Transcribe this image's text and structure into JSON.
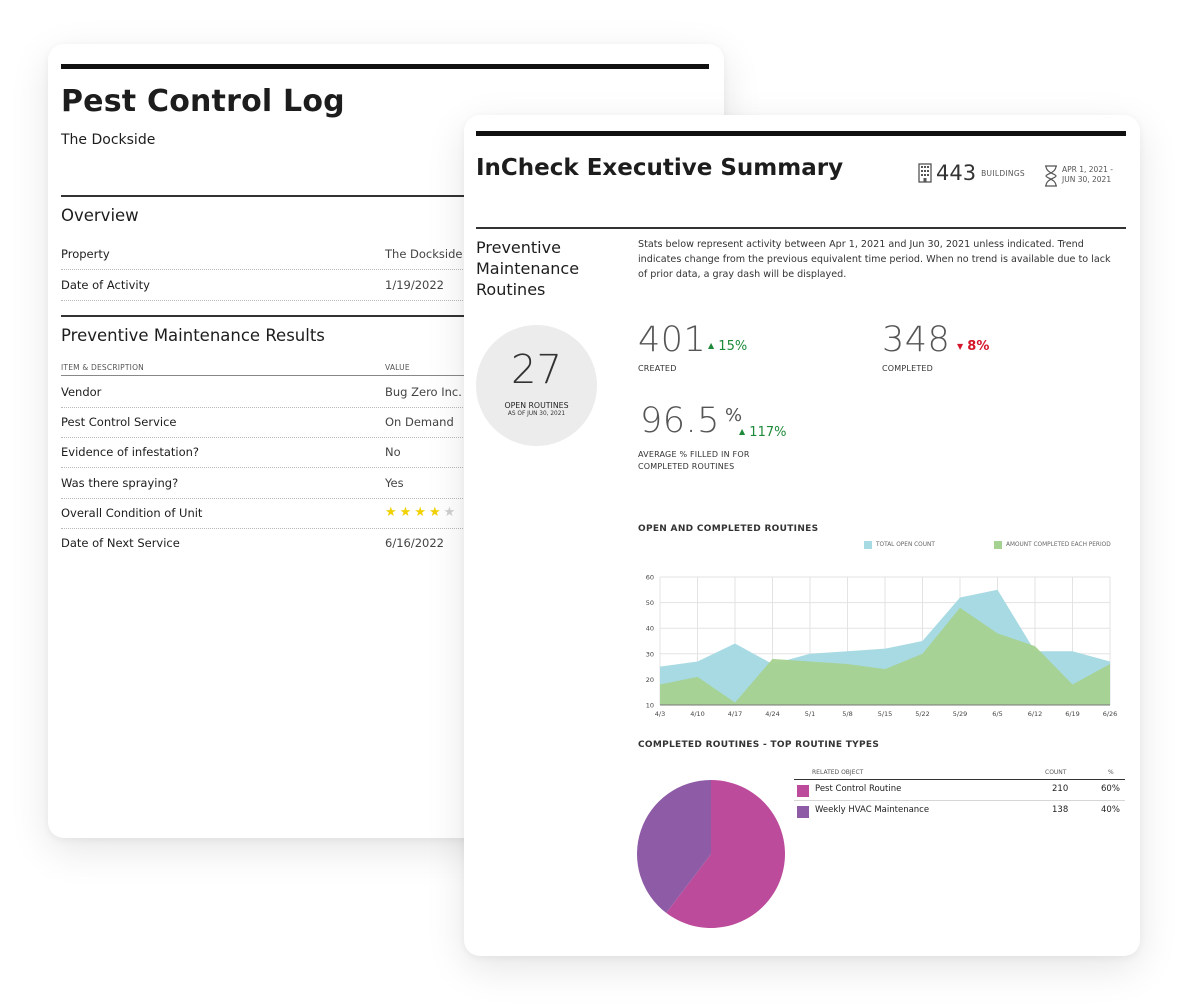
{
  "pest_log": {
    "title": "Pest Control Log",
    "subtitle": "The Dockside",
    "overview": {
      "heading": "Overview",
      "rows": [
        {
          "label": "Property",
          "value": "The Dockside"
        },
        {
          "label": "Date of Activity",
          "value": "1/19/2022"
        }
      ]
    },
    "results": {
      "heading": "Preventive Maintenance Results",
      "col_item": "ITEM & DESCRIPTION",
      "col_value": "VALUE",
      "rows": [
        {
          "label": "Vendor",
          "value": "Bug Zero Inc."
        },
        {
          "label": "Pest Control Service",
          "value": "On Demand"
        },
        {
          "label": "Evidence of infestation?",
          "value": "No"
        },
        {
          "label": "Was there spraying?",
          "value": "Yes"
        },
        {
          "label": "Overall Condition of Unit",
          "rating": 4,
          "rating_max": 5
        },
        {
          "label": "Date of Next Service",
          "value": "6/16/2022"
        }
      ]
    }
  },
  "summary": {
    "title": "InCheck Executive Summary",
    "buildings_count": "443",
    "buildings_label": "BUILDINGS",
    "date_range": "APR 1, 2021 - JUN 30, 2021",
    "section_title": "Preventive Maintenance Routines",
    "intro": "Stats below represent activity between Apr 1, 2021 and Jun 30, 2021 unless indicated. Trend indicates change from the previous equivalent time period. When no trend is available due to lack of prior data, a gray dash will be displayed.",
    "open_routines": {
      "value": "27",
      "label": "OPEN ROUTINES",
      "as_of": "AS OF JUN 30, 2021"
    },
    "stats": {
      "created": {
        "value": "401",
        "trend": "15%",
        "direction": "up",
        "label": "CREATED"
      },
      "completed": {
        "value": "348",
        "trend": "8%",
        "direction": "down",
        "label": "COMPLETED"
      },
      "avg_filled": {
        "value": "96.5",
        "unit": "%",
        "trend": "117%",
        "direction": "up",
        "label": "AVERAGE % FILLED IN FOR COMPLETED ROUTINES"
      }
    },
    "line_chart_title": "OPEN AND COMPLETED ROUTINES",
    "pie_chart_title": "COMPLETED ROUTINES - TOP ROUTINE TYPES",
    "table": {
      "col_object": "RELATED OBJECT",
      "col_count": "COUNT",
      "col_pct": "%",
      "rows": [
        {
          "name": "Pest Control Routine",
          "count": "210",
          "pct": "60%",
          "color": "#bd4b9c"
        },
        {
          "name": "Weekly HVAC Maintenance",
          "count": "138",
          "pct": "40%",
          "color": "#8e5ca6"
        }
      ]
    }
  },
  "colors": {
    "open_area": "#a8dae3",
    "completed_area": "#a5d290",
    "pie_pest": "#bd4b9c",
    "pie_hvac": "#8e5ca6",
    "trend_up": "#1d8a3a",
    "trend_down": "#d5162a",
    "star": "#f1d100"
  },
  "chart_data": [
    {
      "type": "area",
      "title": "OPEN AND COMPLETED ROUTINES",
      "x": [
        "4/3",
        "4/10",
        "4/17",
        "4/24",
        "5/1",
        "5/8",
        "5/15",
        "5/22",
        "5/29",
        "6/5",
        "6/12",
        "6/19",
        "6/26"
      ],
      "series": [
        {
          "name": "TOTAL OPEN COUNT",
          "values": [
            25,
            27,
            34,
            26,
            30,
            31,
            32,
            35,
            52,
            55,
            31,
            31,
            27
          ]
        },
        {
          "name": "AMOUNT COMPLETED EACH PERIOD",
          "values": [
            18,
            21,
            11,
            28,
            27,
            26,
            24,
            30,
            48,
            38,
            33,
            18,
            26
          ]
        }
      ],
      "ylim": [
        10,
        60
      ],
      "yticks": [
        10,
        20,
        30,
        40,
        50,
        60
      ],
      "grid": true,
      "legend": "top-right"
    },
    {
      "type": "pie",
      "title": "COMPLETED ROUTINES - TOP ROUTINE TYPES",
      "categories": [
        "Pest Control Routine",
        "Weekly HVAC Maintenance"
      ],
      "values": [
        210,
        138
      ]
    }
  ]
}
